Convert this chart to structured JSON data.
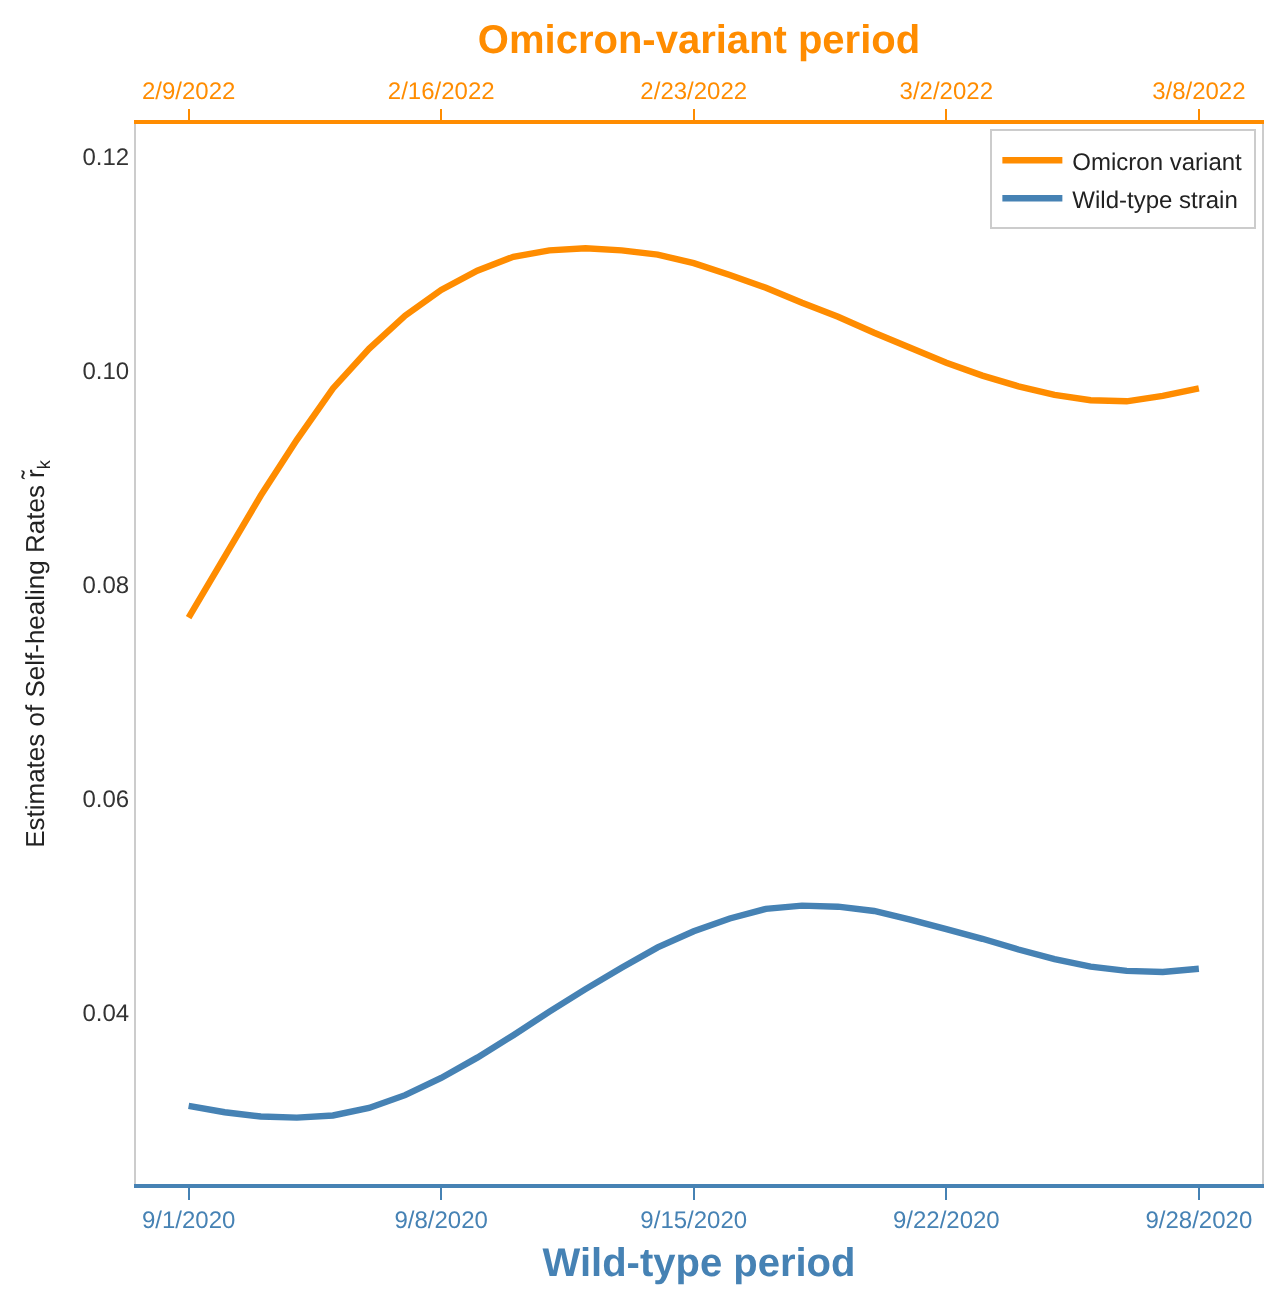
{
  "chart_data": {
    "type": "line",
    "xlabel": "Wild-type period",
    "x2label": "Omicron-variant period",
    "ylabel": "Estimates of Self-healing Rates r̃$_{k}$",
    "xlim": [
      "2020-08-30T13:00",
      "2020-09-30T18:00"
    ],
    "xticks": [
      {
        "value": "2020-09-01",
        "label": "9/1/2020"
      },
      {
        "value": "2020-09-08",
        "label": "9/8/2020"
      },
      {
        "value": "2020-09-15",
        "label": "9/15/2020"
      },
      {
        "value": "2020-09-22",
        "label": "9/22/2020"
      },
      {
        "value": "2020-09-29",
        "label": "9/28/2020"
      }
    ],
    "x2lim": [
      "2022-02-07T13:00",
      "2022-03-10T18:00"
    ],
    "x2ticks": [
      {
        "value": "2022-02-09",
        "label": "2/9/2022"
      },
      {
        "value": "2022-02-16",
        "label": "2/16/2022"
      },
      {
        "value": "2022-02-23",
        "label": "2/23/2022"
      },
      {
        "value": "2022-03-02",
        "label": "3/2/2022"
      },
      {
        "value": "2022-03-09",
        "label": "3/8/2022"
      }
    ],
    "ylim": [
      0.024,
      0.123
    ],
    "yticks": [
      0.04,
      0.06,
      0.08,
      {
        "value": 0.1,
        "label": "0.10"
      },
      0.12
    ],
    "legend": "top right",
    "series": [
      {
        "name": "Omicron variant",
        "color": "#ff8c00",
        "axis": "x2",
        "x": [
          "2022-02-09",
          "2022-02-10",
          "2022-02-11",
          "2022-02-12",
          "2022-02-13",
          "2022-02-14",
          "2022-02-15",
          "2022-02-16",
          "2022-02-17",
          "2022-02-18",
          "2022-02-19",
          "2022-02-20",
          "2022-02-21",
          "2022-02-22",
          "2022-02-23",
          "2022-02-24",
          "2022-02-25",
          "2022-02-26",
          "2022-02-27",
          "2022-02-28",
          "2022-03-01",
          "2022-03-02",
          "2022-03-03",
          "2022-03-04",
          "2022-03-05",
          "2022-03-06",
          "2022-03-07",
          "2022-03-08",
          "2022-03-09"
        ],
        "values": [
          0.0769,
          0.0826,
          0.0883,
          0.0935,
          0.0983,
          0.102,
          0.1051,
          0.1075,
          0.1093,
          0.1106,
          0.1112,
          0.1114,
          0.1112,
          0.1108,
          0.11,
          0.1089,
          0.1077,
          0.1063,
          0.105,
          0.1035,
          0.1021,
          0.1007,
          0.0995,
          0.0985,
          0.0977,
          0.0972,
          0.0971,
          0.0976,
          0.0983
        ]
      },
      {
        "name": "Wild-type strain",
        "color": "#4682b4",
        "x": [
          "2020-09-01",
          "2020-09-02",
          "2020-09-03",
          "2020-09-04",
          "2020-09-05",
          "2020-09-06",
          "2020-09-07",
          "2020-09-08",
          "2020-09-09",
          "2020-09-10",
          "2020-09-11",
          "2020-09-12",
          "2020-09-13",
          "2020-09-14",
          "2020-09-15",
          "2020-09-16",
          "2020-09-17",
          "2020-09-18",
          "2020-09-19",
          "2020-09-20",
          "2020-09-21",
          "2020-09-22",
          "2020-09-23",
          "2020-09-24",
          "2020-09-25",
          "2020-09-26",
          "2020-09-27",
          "2020-09-28",
          "2020-09-29"
        ],
        "values": [
          0.0313,
          0.0307,
          0.0303,
          0.0302,
          0.0304,
          0.0311,
          0.0323,
          0.0339,
          0.0358,
          0.0379,
          0.0401,
          0.0422,
          0.0442,
          0.0461,
          0.0476,
          0.0488,
          0.0497,
          0.05,
          0.0499,
          0.0495,
          0.0487,
          0.0478,
          0.0469,
          0.0459,
          0.045,
          0.0443,
          0.0439,
          0.0438,
          0.0441
        ]
      }
    ]
  }
}
